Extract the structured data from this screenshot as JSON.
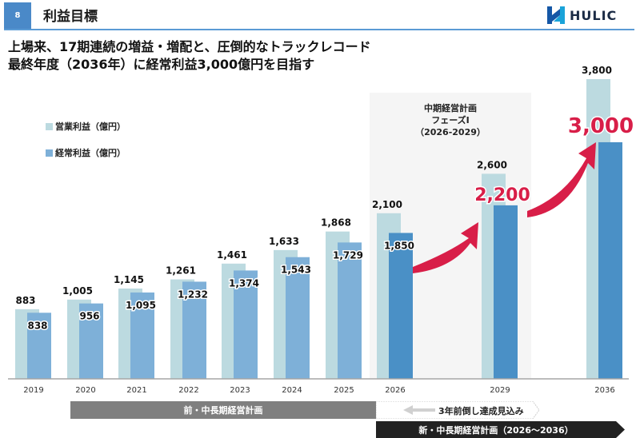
{
  "header": {
    "page_number": "8",
    "title": "利益目標",
    "logo_text": "HULIC",
    "logo_icon": "hulic-h-logo-icon"
  },
  "subtitle": {
    "line1": "上場来、17期連続の増益・増配と、圧倒的なトラックレコード",
    "line2": "最終年度（2036年）に経常利益3,000億円を目指す"
  },
  "colors": {
    "accent": "#4a89c8",
    "operating_profit": "#bcdae0",
    "recurring_profit_actual": "#7eb0d8",
    "recurring_profit_plan": "#4a90c6",
    "target_red": "#d81e48",
    "phase_bg": "#f5f5f5",
    "old_plan_bar": "#7f7f7f",
    "new_plan_bar": "#222222"
  },
  "phase_box": {
    "line1": "中期経営計画",
    "line2": "フェーズⅠ",
    "line3": "（2026-2029）"
  },
  "chart_data": {
    "type": "bar",
    "title": "利益目標",
    "xlabel": "",
    "ylabel": "",
    "categories": [
      "2019",
      "2020",
      "2021",
      "2022",
      "2023",
      "2024",
      "2025",
      "2026",
      "2029",
      "2036"
    ],
    "series": [
      {
        "name": "営業利益（億円）",
        "values": [
          883,
          1005,
          1145,
          1261,
          1461,
          1633,
          1868,
          2100,
          2600,
          3800
        ],
        "labels": [
          "883",
          "1,005",
          "1,145",
          "1,261",
          "1,461",
          "1,633",
          "1,868",
          "2,100",
          "2,600",
          "3,800"
        ]
      },
      {
        "name": "経常利益（億円）",
        "values": [
          838,
          956,
          1095,
          1232,
          1374,
          1543,
          1729,
          1850,
          2200,
          3000
        ],
        "labels": [
          "838",
          "956",
          "1,095",
          "1,232",
          "1,374",
          "1,543",
          "1,729",
          "1,850",
          "2,200",
          "3,000"
        ]
      }
    ],
    "highlighted_targets": [
      "2029",
      "2036"
    ],
    "ylim": [
      0,
      3800
    ],
    "grid": false,
    "legend": "top-left",
    "annotations": [
      "中期経営計画 フェーズⅠ（2026-2029）",
      "前・中長期経営計画",
      "3年前倒し達成見込み",
      "新・中長期経営計画（2026〜2036）"
    ]
  },
  "timeline": {
    "old_plan": "前・中長期経営計画",
    "ahead_of_schedule": "3年前倒し達成見込み",
    "new_plan": "新・中長期経営計画（2026〜2036）"
  }
}
